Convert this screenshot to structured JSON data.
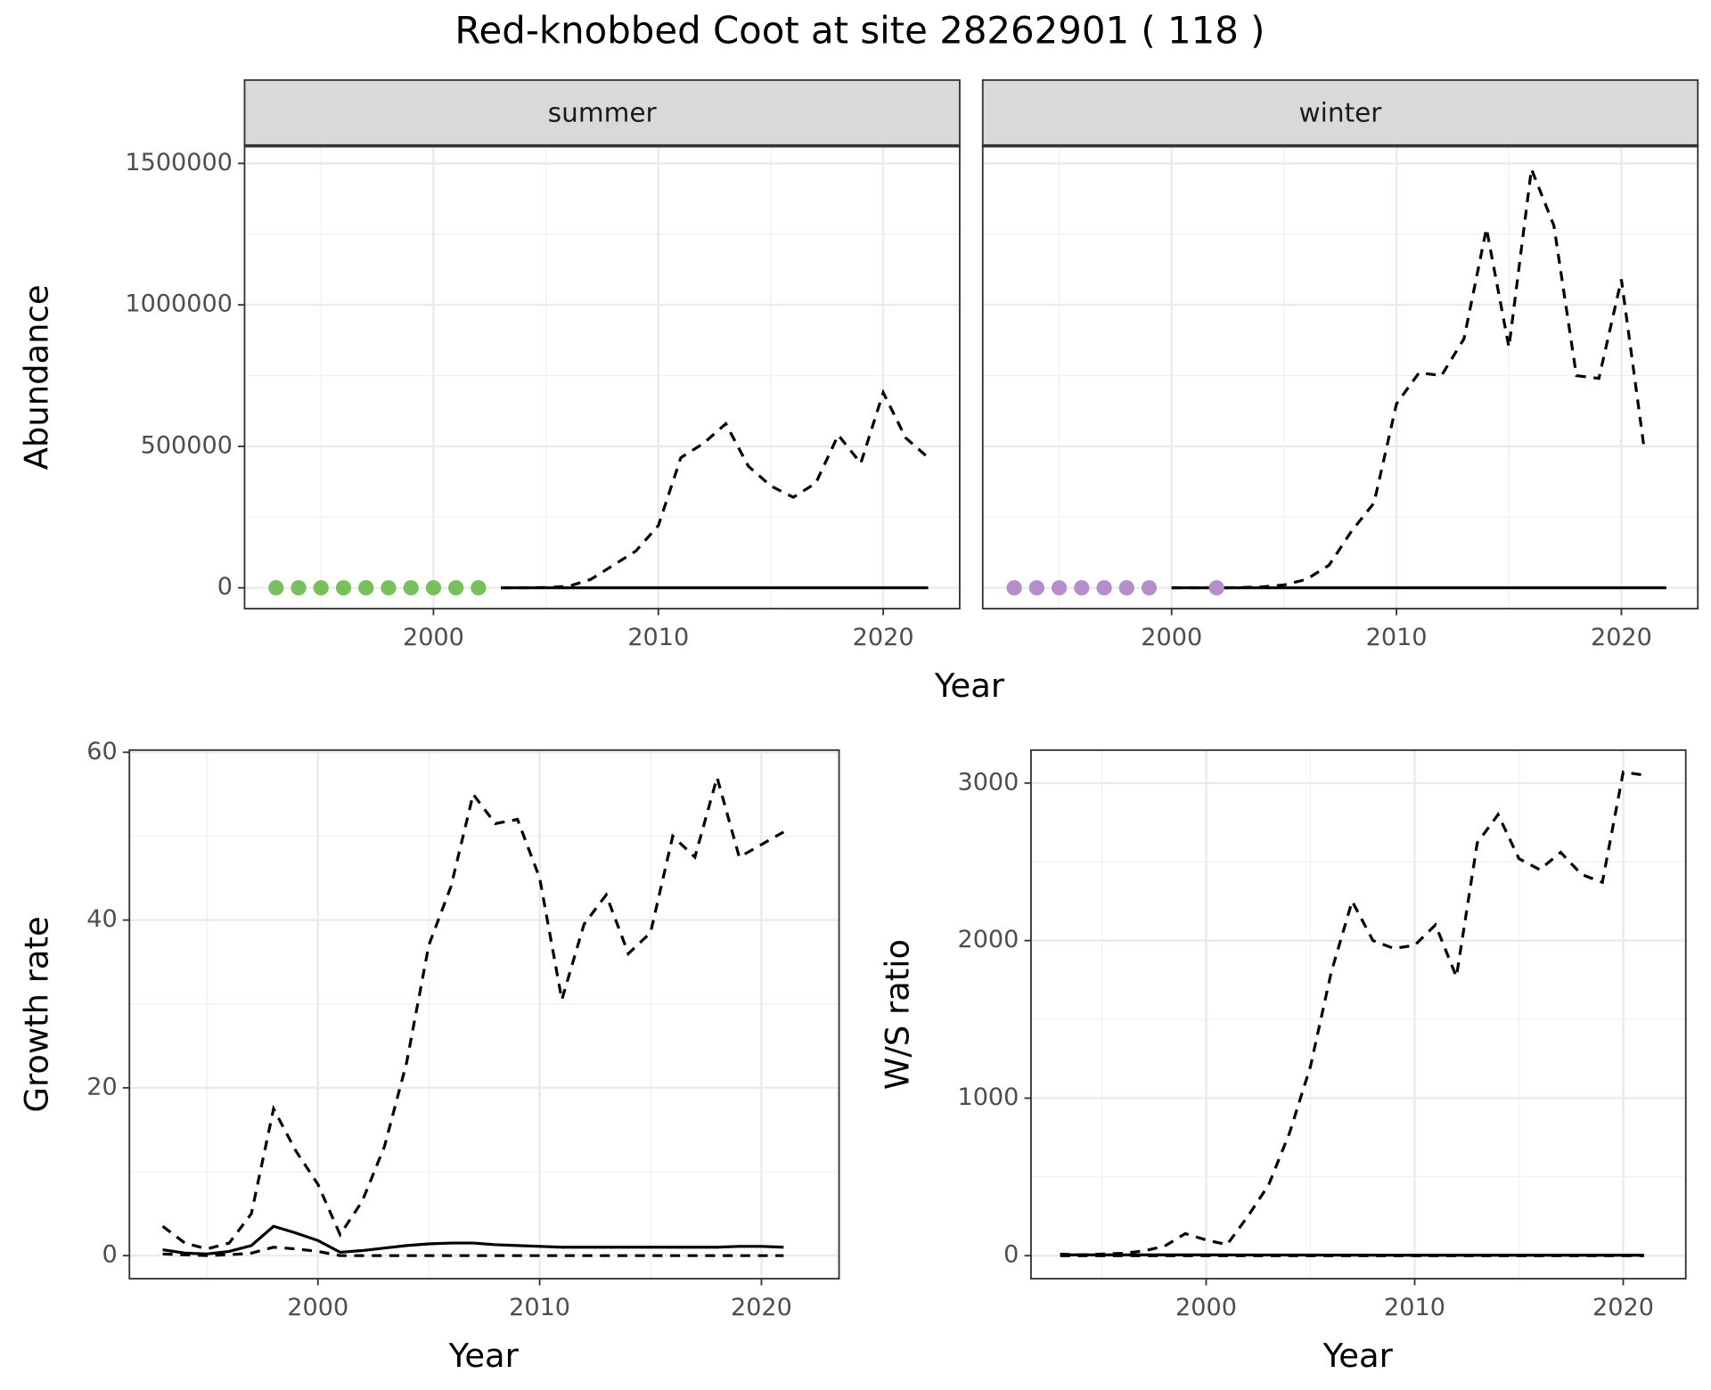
{
  "title": "Red-knobbed Coot at site 28262901 ( 118 )",
  "chart_data": [
    {
      "type": "line",
      "facet": "summer",
      "ylabel": "Abundance",
      "xlabel": "Year",
      "xlim": [
        1991.6,
        2023.4
      ],
      "xticks": [
        2000,
        2010,
        2020
      ],
      "ylim": [
        -73600,
        1562000
      ],
      "yticks": [
        0,
        500000,
        1000000,
        1500000
      ],
      "grid": true,
      "series": [
        {
          "color": "#000000",
          "dash": true,
          "x": [
            2003,
            2004,
            2005,
            2006,
            2007,
            2008,
            2009,
            2010,
            2011,
            2012,
            2013,
            2014,
            2015,
            2016,
            2017,
            2018,
            2019,
            2020,
            2021,
            2022
          ],
          "values": [
            0,
            0,
            1000,
            5000,
            30000,
            80000,
            130000,
            220000,
            460000,
            510000,
            580000,
            430000,
            360000,
            320000,
            370000,
            540000,
            440000,
            690000,
            530000,
            460000
          ]
        },
        {
          "color": "#000000",
          "dash": false,
          "x": [
            2003,
            2022
          ],
          "values": [
            0,
            0
          ]
        },
        {
          "color": "#78c05c",
          "points": true,
          "x": [
            1993,
            1994,
            1995,
            1996,
            1997,
            1998,
            1999,
            2000,
            2001,
            2002
          ],
          "values": [
            0,
            0,
            0,
            0,
            0,
            0,
            0,
            0,
            0,
            0
          ]
        }
      ]
    },
    {
      "type": "line",
      "facet": "winter",
      "xlim": [
        1991.6,
        2023.4
      ],
      "xticks": [
        2000,
        2010,
        2020
      ],
      "ylim": [
        -73600,
        1562000
      ],
      "yticks": [
        0,
        500000,
        1000000,
        1500000
      ],
      "grid": true,
      "series": [
        {
          "color": "#000000",
          "dash": true,
          "x": [
            2000,
            2001,
            2002,
            2003,
            2004,
            2005,
            2006,
            2007,
            2008,
            2009,
            2010,
            2011,
            2012,
            2013,
            2014,
            2015,
            2016,
            2017,
            2018,
            2019,
            2020,
            2021
          ],
          "values": [
            0,
            0,
            0,
            1000,
            3000,
            10000,
            30000,
            80000,
            200000,
            300000,
            650000,
            760000,
            750000,
            880000,
            1270000,
            850000,
            1480000,
            1280000,
            750000,
            740000,
            1090000,
            500000
          ]
        },
        {
          "color": "#000000",
          "dash": false,
          "x": [
            2000,
            2022
          ],
          "values": [
            0,
            0
          ]
        },
        {
          "color": "#b48fcc",
          "points": true,
          "x": [
            1993,
            1994,
            1995,
            1996,
            1997,
            1998,
            1999,
            2002
          ],
          "values": [
            0,
            0,
            0,
            0,
            0,
            0,
            0,
            0
          ]
        }
      ]
    },
    {
      "type": "line",
      "ylabel": "Growth rate",
      "xlabel": "Year",
      "xlim": [
        1991.5,
        2023.5
      ],
      "xticks": [
        2000,
        2010,
        2020
      ],
      "ylim": [
        -2.75,
        60.26
      ],
      "yticks": [
        0,
        20,
        40,
        60
      ],
      "grid": true,
      "series": [
        {
          "color": "#000000",
          "dash": true,
          "x": [
            1993,
            1994,
            1995,
            1996,
            1997,
            1998,
            1999,
            2000,
            2001,
            2002,
            2003,
            2004,
            2005,
            2006,
            2007,
            2008,
            2009,
            2010,
            2011,
            2012,
            2013,
            2014,
            2015,
            2016,
            2017,
            2018,
            2019,
            2020,
            2021
          ],
          "values": [
            3.5,
            1.5,
            0.8,
            1.5,
            5,
            17.5,
            12.5,
            8.5,
            2.5,
            6.5,
            13,
            23,
            37,
            44,
            55,
            51.5,
            52,
            45,
            30.5,
            39.5,
            43,
            36,
            38.5,
            50,
            47.5,
            57,
            47.5,
            49,
            50.5
          ]
        },
        {
          "color": "#000000",
          "dash": false,
          "x": [
            1993,
            1994,
            1995,
            1996,
            1997,
            1998,
            1999,
            2000,
            2001,
            2002,
            2003,
            2004,
            2005,
            2006,
            2007,
            2008,
            2009,
            2010,
            2011,
            2012,
            2013,
            2014,
            2015,
            2016,
            2017,
            2018,
            2019,
            2020,
            2021
          ],
          "values": [
            0.7,
            0.3,
            0.2,
            0.5,
            1.2,
            3.5,
            2.7,
            1.8,
            0.4,
            0.6,
            0.9,
            1.2,
            1.4,
            1.5,
            1.5,
            1.3,
            1.2,
            1.1,
            1,
            1,
            1,
            1,
            1,
            1,
            1,
            1,
            1.1,
            1.1,
            1
          ]
        },
        {
          "color": "#000000",
          "dash": true,
          "x": [
            1993,
            1994,
            1995,
            1996,
            1997,
            1998,
            1999,
            2000,
            2001,
            2021
          ],
          "values": [
            0.2,
            0.1,
            0,
            0.1,
            0.3,
            1,
            0.8,
            0.5,
            0,
            0
          ]
        }
      ]
    },
    {
      "type": "line",
      "ylabel": "W/S ratio",
      "xlabel": "Year",
      "xlim": [
        1991.6,
        2023.0
      ],
      "xticks": [
        2000,
        2010,
        2020
      ],
      "ylim": [
        -146,
        3209
      ],
      "yticks": [
        0,
        1000,
        2000,
        3000
      ],
      "grid": true,
      "series": [
        {
          "color": "#000000",
          "dash": true,
          "x": [
            1993,
            1994,
            1995,
            1996,
            1997,
            1998,
            1999,
            2000,
            2001,
            2002,
            2003,
            2004,
            2005,
            2006,
            2007,
            2008,
            2009,
            2010,
            2011,
            2012,
            2013,
            2014,
            2015,
            2016,
            2017,
            2018,
            2019,
            2020,
            2021
          ],
          "values": [
            10,
            5,
            10,
            15,
            30,
            60,
            140,
            100,
            70,
            250,
            450,
            780,
            1200,
            1800,
            2250,
            2000,
            1950,
            1970,
            2100,
            1770,
            2620,
            2800,
            2520,
            2450,
            2560,
            2420,
            2370,
            3070,
            3050
          ]
        },
        {
          "color": "#000000",
          "dash": false,
          "x": [
            1993,
            2000,
            2010,
            2021
          ],
          "values": [
            5,
            5,
            3,
            3
          ]
        },
        {
          "color": "#000000",
          "dash": true,
          "x": [
            1993,
            2021
          ],
          "values": [
            0,
            0
          ]
        }
      ]
    }
  ]
}
